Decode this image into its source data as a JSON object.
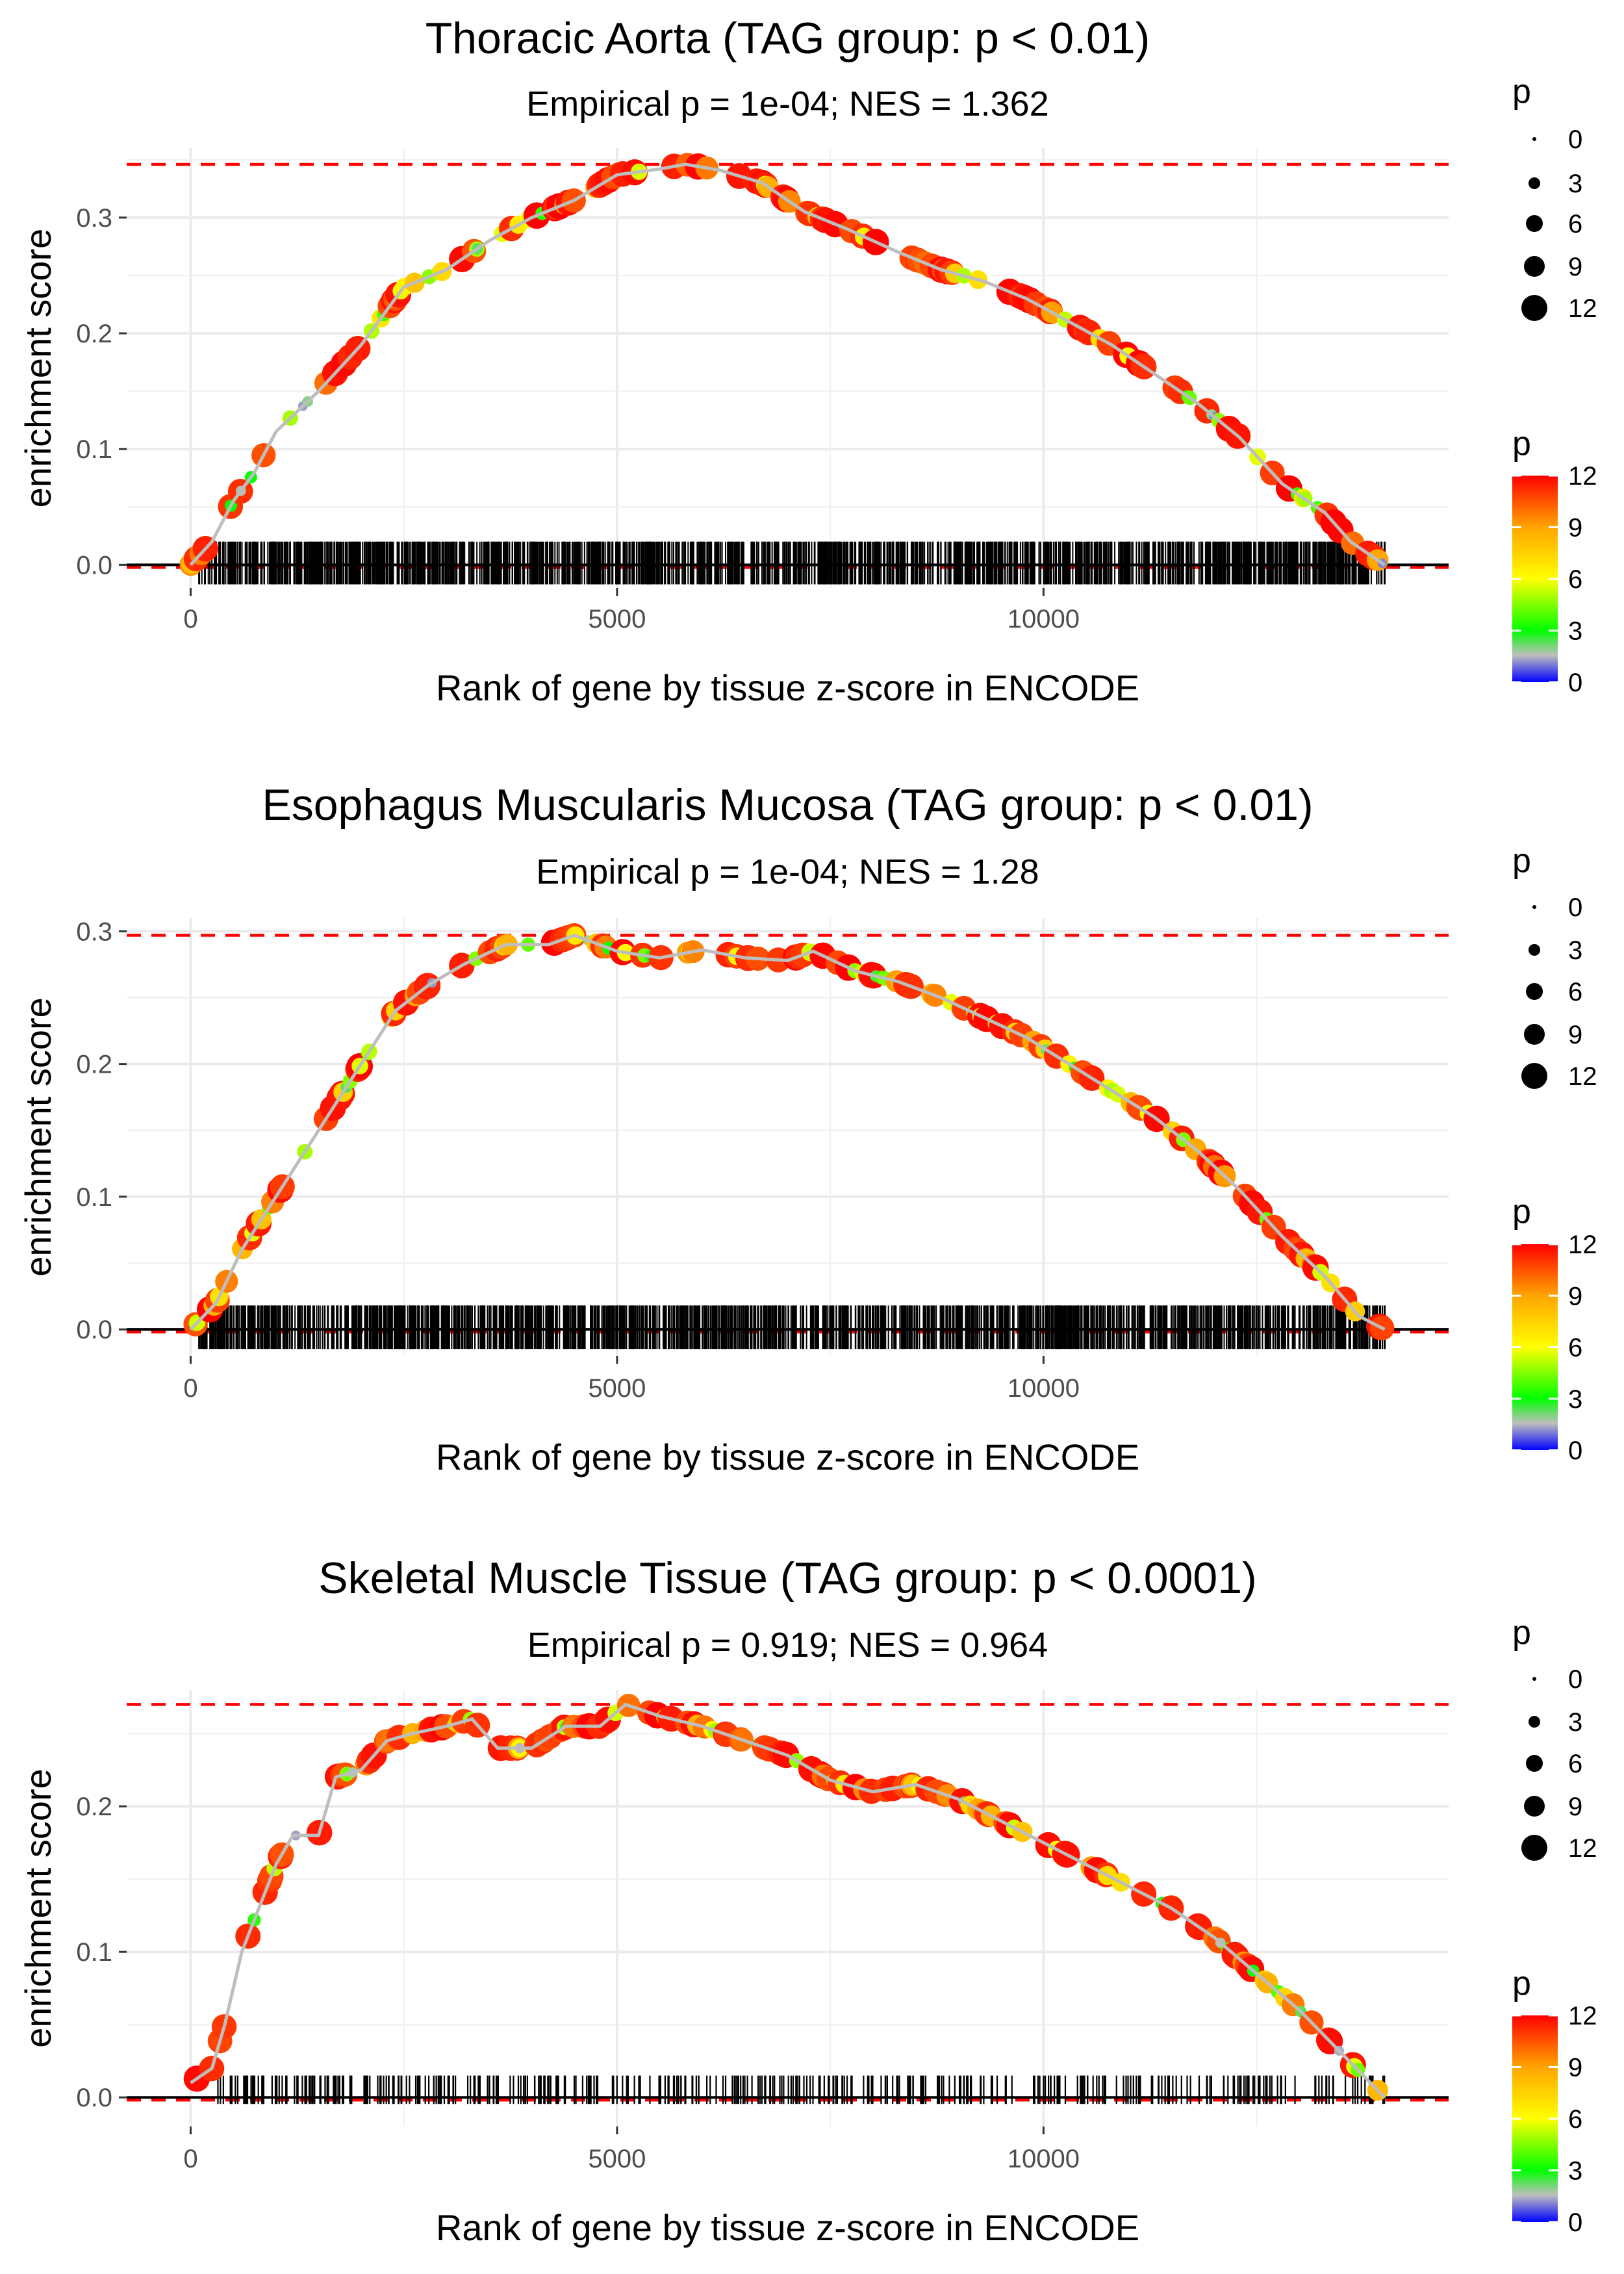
{
  "chart_data": [
    {
      "type": "line",
      "title": "Thoracic Aorta (TAG group: p < 0.01)",
      "subtitle": "Empirical p = 1e-04; NES = 1.362",
      "xlabel": "Rank of gene by tissue z-score in ENCODE",
      "ylabel": "enrichment score",
      "xlim": [
        -750,
        14750
      ],
      "ylim": [
        -0.02,
        0.36
      ],
      "x_ticks": [
        0,
        5000,
        10000
      ],
      "x_tick_labels": [
        "0",
        "5000",
        "10000"
      ],
      "y_ticks": [
        0.0,
        0.1,
        0.2,
        0.3
      ],
      "y_tick_labels": [
        "0.0",
        "0.1",
        "0.2",
        "0.3"
      ],
      "max_es": 0.346,
      "curve": [
        [
          0,
          0.0
        ],
        [
          250,
          0.02
        ],
        [
          500,
          0.055
        ],
        [
          750,
          0.08
        ],
        [
          1000,
          0.115
        ],
        [
          1500,
          0.15
        ],
        [
          2000,
          0.19
        ],
        [
          2500,
          0.24
        ],
        [
          3000,
          0.255
        ],
        [
          3500,
          0.28
        ],
        [
          4000,
          0.3
        ],
        [
          4500,
          0.315
        ],
        [
          5000,
          0.337
        ],
        [
          5500,
          0.342
        ],
        [
          5800,
          0.346
        ],
        [
          6200,
          0.341
        ],
        [
          6700,
          0.33
        ],
        [
          7200,
          0.305
        ],
        [
          7700,
          0.29
        ],
        [
          8300,
          0.27
        ],
        [
          8800,
          0.255
        ],
        [
          9300,
          0.245
        ],
        [
          9800,
          0.23
        ],
        [
          10300,
          0.21
        ],
        [
          10800,
          0.19
        ],
        [
          11300,
          0.165
        ],
        [
          11800,
          0.14
        ],
        [
          12300,
          0.11
        ],
        [
          12800,
          0.07
        ],
        [
          13300,
          0.045
        ],
        [
          13600,
          0.02
        ],
        [
          14000,
          0.0
        ]
      ],
      "rug_range": [
        100,
        14000
      ],
      "rug_height": 0.02,
      "rug_density": "dense",
      "legend_size": {
        "title": "p",
        "values": [
          0,
          3,
          6,
          9,
          12
        ],
        "labels": [
          "0",
          "3",
          "6",
          "9",
          "12"
        ]
      },
      "legend_color": {
        "title": "p",
        "values": [
          12,
          9,
          6,
          3,
          0
        ],
        "labels": [
          "12",
          "9",
          "6",
          "3",
          "0"
        ],
        "colors": [
          "#ff0000",
          "#ffa500",
          "#ffff00",
          "#00ff00",
          "#bebebe",
          "#0000ff"
        ]
      }
    },
    {
      "type": "line",
      "title": "Esophagus Muscularis Mucosa (TAG group: p < 0.01)",
      "subtitle": "Empirical p = 1e-04; NES = 1.28",
      "xlabel": "Rank of gene by tissue z-score in ENCODE",
      "ylabel": "enrichment score",
      "xlim": [
        -750,
        14750
      ],
      "ylim": [
        -0.02,
        0.31
      ],
      "x_ticks": [
        0,
        5000,
        10000
      ],
      "x_tick_labels": [
        "0",
        "5000",
        "10000"
      ],
      "y_ticks": [
        0.0,
        0.1,
        0.2,
        0.3
      ],
      "y_tick_labels": [
        "0.0",
        "0.1",
        "0.2",
        "0.3"
      ],
      "max_es": 0.297,
      "curve": [
        [
          0,
          0.0
        ],
        [
          300,
          0.02
        ],
        [
          600,
          0.06
        ],
        [
          1000,
          0.1
        ],
        [
          1500,
          0.15
        ],
        [
          2000,
          0.2
        ],
        [
          2400,
          0.24
        ],
        [
          2800,
          0.26
        ],
        [
          3200,
          0.275
        ],
        [
          3700,
          0.29
        ],
        [
          4200,
          0.29
        ],
        [
          4500,
          0.297
        ],
        [
          5000,
          0.285
        ],
        [
          5500,
          0.28
        ],
        [
          6000,
          0.286
        ],
        [
          6500,
          0.28
        ],
        [
          7000,
          0.278
        ],
        [
          7300,
          0.285
        ],
        [
          7800,
          0.27
        ],
        [
          8300,
          0.262
        ],
        [
          8800,
          0.25
        ],
        [
          9300,
          0.235
        ],
        [
          9800,
          0.22
        ],
        [
          10300,
          0.2
        ],
        [
          10800,
          0.18
        ],
        [
          11300,
          0.16
        ],
        [
          11800,
          0.135
        ],
        [
          12300,
          0.105
        ],
        [
          12800,
          0.07
        ],
        [
          13300,
          0.04
        ],
        [
          13700,
          0.01
        ],
        [
          14000,
          0.0
        ]
      ],
      "rug_range": [
        100,
        14000
      ],
      "rug_height": 0.018,
      "rug_density": "dense",
      "legend_size": {
        "title": "p",
        "values": [
          0,
          3,
          6,
          9,
          12
        ],
        "labels": [
          "0",
          "3",
          "6",
          "9",
          "12"
        ]
      },
      "legend_color": {
        "title": "p",
        "values": [
          12,
          9,
          6,
          3,
          0
        ],
        "labels": [
          "12",
          "9",
          "6",
          "3",
          "0"
        ],
        "colors": [
          "#ff0000",
          "#ffa500",
          "#ffff00",
          "#00ff00",
          "#bebebe",
          "#0000ff"
        ]
      }
    },
    {
      "type": "line",
      "title": "Skeletal Muscle Tissue (TAG group: p < 0.0001)",
      "subtitle": "Empirical p = 0.919; NES = 0.964",
      "xlabel": "Rank of gene by tissue z-score in ENCODE",
      "ylabel": "enrichment score",
      "xlim": [
        -750,
        14750
      ],
      "ylim": [
        -0.02,
        0.28
      ],
      "x_ticks": [
        0,
        5000,
        10000
      ],
      "x_tick_labels": [
        "0",
        "5000",
        "10000"
      ],
      "y_ticks": [
        0.0,
        0.1,
        0.2
      ],
      "y_tick_labels": [
        "0.0",
        "0.1",
        "0.2"
      ],
      "max_es": 0.27,
      "curve": [
        [
          0,
          0.01
        ],
        [
          250,
          0.02
        ],
        [
          400,
          0.05
        ],
        [
          600,
          0.1
        ],
        [
          800,
          0.13
        ],
        [
          1000,
          0.16
        ],
        [
          1200,
          0.18
        ],
        [
          1500,
          0.18
        ],
        [
          1700,
          0.22
        ],
        [
          2000,
          0.225
        ],
        [
          2300,
          0.245
        ],
        [
          2600,
          0.25
        ],
        [
          3000,
          0.255
        ],
        [
          3300,
          0.26
        ],
        [
          3600,
          0.24
        ],
        [
          4000,
          0.24
        ],
        [
          4400,
          0.255
        ],
        [
          4800,
          0.255
        ],
        [
          5100,
          0.27
        ],
        [
          5500,
          0.262
        ],
        [
          6000,
          0.255
        ],
        [
          6500,
          0.245
        ],
        [
          7000,
          0.235
        ],
        [
          7500,
          0.218
        ],
        [
          8000,
          0.21
        ],
        [
          8500,
          0.215
        ],
        [
          9000,
          0.205
        ],
        [
          9500,
          0.19
        ],
        [
          10000,
          0.175
        ],
        [
          10500,
          0.16
        ],
        [
          11000,
          0.145
        ],
        [
          11500,
          0.13
        ],
        [
          12000,
          0.11
        ],
        [
          12500,
          0.085
        ],
        [
          13000,
          0.06
        ],
        [
          13500,
          0.03
        ],
        [
          14000,
          0.0
        ]
      ],
      "rug_range": [
        200,
        14000
      ],
      "rug_height": 0.015,
      "rug_density": "sparse",
      "legend_size": {
        "title": "p",
        "values": [
          0,
          3,
          6,
          9,
          12
        ],
        "labels": [
          "0",
          "3",
          "6",
          "9",
          "12"
        ]
      },
      "legend_color": {
        "title": "p",
        "values": [
          12,
          9,
          6,
          3,
          0
        ],
        "labels": [
          "12",
          "9",
          "6",
          "3",
          "0"
        ],
        "colors": [
          "#ff0000",
          "#ffa500",
          "#ffff00",
          "#00ff00",
          "#bebebe",
          "#0000ff"
        ]
      }
    }
  ]
}
